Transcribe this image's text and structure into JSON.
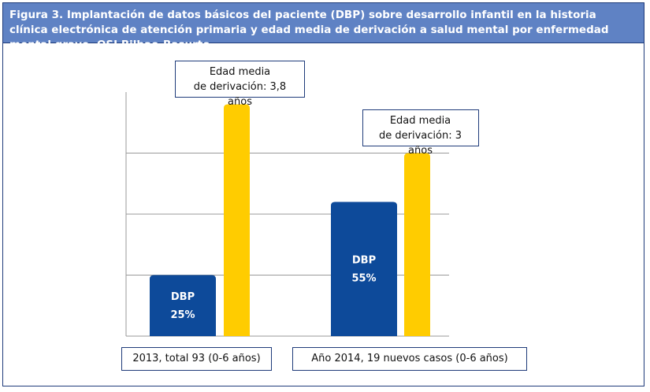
{
  "chart_data": {
    "type": "bar",
    "title": "Figura 3. Implantación de datos básicos del paciente (DBP) sobre desarrollo infantil en la historia clínica electrónica de atención primaria y edad media de derivación a salud mental por enfermedad mental grave. OSI Bilbao-Basurto",
    "categories": [
      "2013, total 93 (0-6 años)",
      "Año 2014, 19 nuevos casos (0-6 años)"
    ],
    "series": [
      {
        "name": "DBP",
        "color": "#0d4a9a",
        "axis": "y2",
        "values": [
          25,
          55
        ],
        "value_labels": [
          "25%",
          "55%"
        ]
      },
      {
        "color": "#ffcc00",
        "values": [
          3.8,
          3
        ],
        "value_labels": [
          "Edad media\nde derivación: 3,8 años",
          "Edad media\nde derivación: 3 años"
        ]
      }
    ],
    "ylim": [
      0,
      4
    ],
    "yticks": [
      1,
      2,
      3
    ],
    "y2lim": [
      0,
      100
    ],
    "grid": true
  }
}
